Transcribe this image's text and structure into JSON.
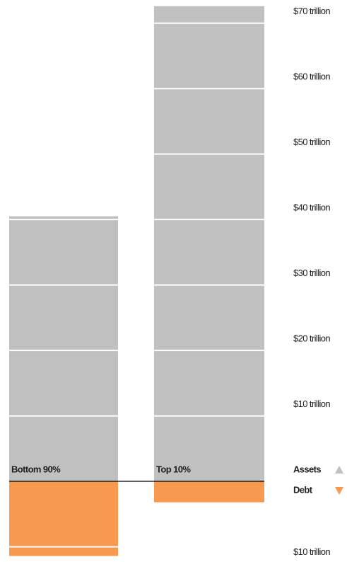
{
  "chart_data": {
    "type": "bar",
    "stacked": true,
    "categories": [
      "Bottom 90%",
      "Top 10%"
    ],
    "series": [
      {
        "name": "Assets",
        "color": "#c0c0c0",
        "values": [
          40.5,
          72.6
        ]
      },
      {
        "name": "Debt",
        "color": "#f79a50",
        "values": [
          -11.4,
          -3.2
        ]
      }
    ],
    "ylim": [
      -12,
      73
    ],
    "yticks": [
      {
        "value": 70,
        "label": "$70 trillion"
      },
      {
        "value": 60,
        "label": "$60 trillion"
      },
      {
        "value": 50,
        "label": "$50 trillion"
      },
      {
        "value": 40,
        "label": "$40 trillion"
      },
      {
        "value": 30,
        "label": "$30 trillion"
      },
      {
        "value": 20,
        "label": "$20 trillion"
      },
      {
        "value": 10,
        "label": "$10 trillion"
      },
      {
        "value": -10,
        "label": "$10 trillion"
      }
    ],
    "grid": true
  }
}
